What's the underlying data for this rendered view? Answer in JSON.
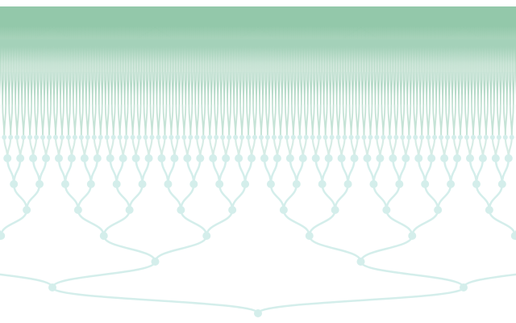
{
  "tree": {
    "levels": 11,
    "link_color": "#d4eeeb",
    "leaf_color": "#3a9a64"
  }
}
